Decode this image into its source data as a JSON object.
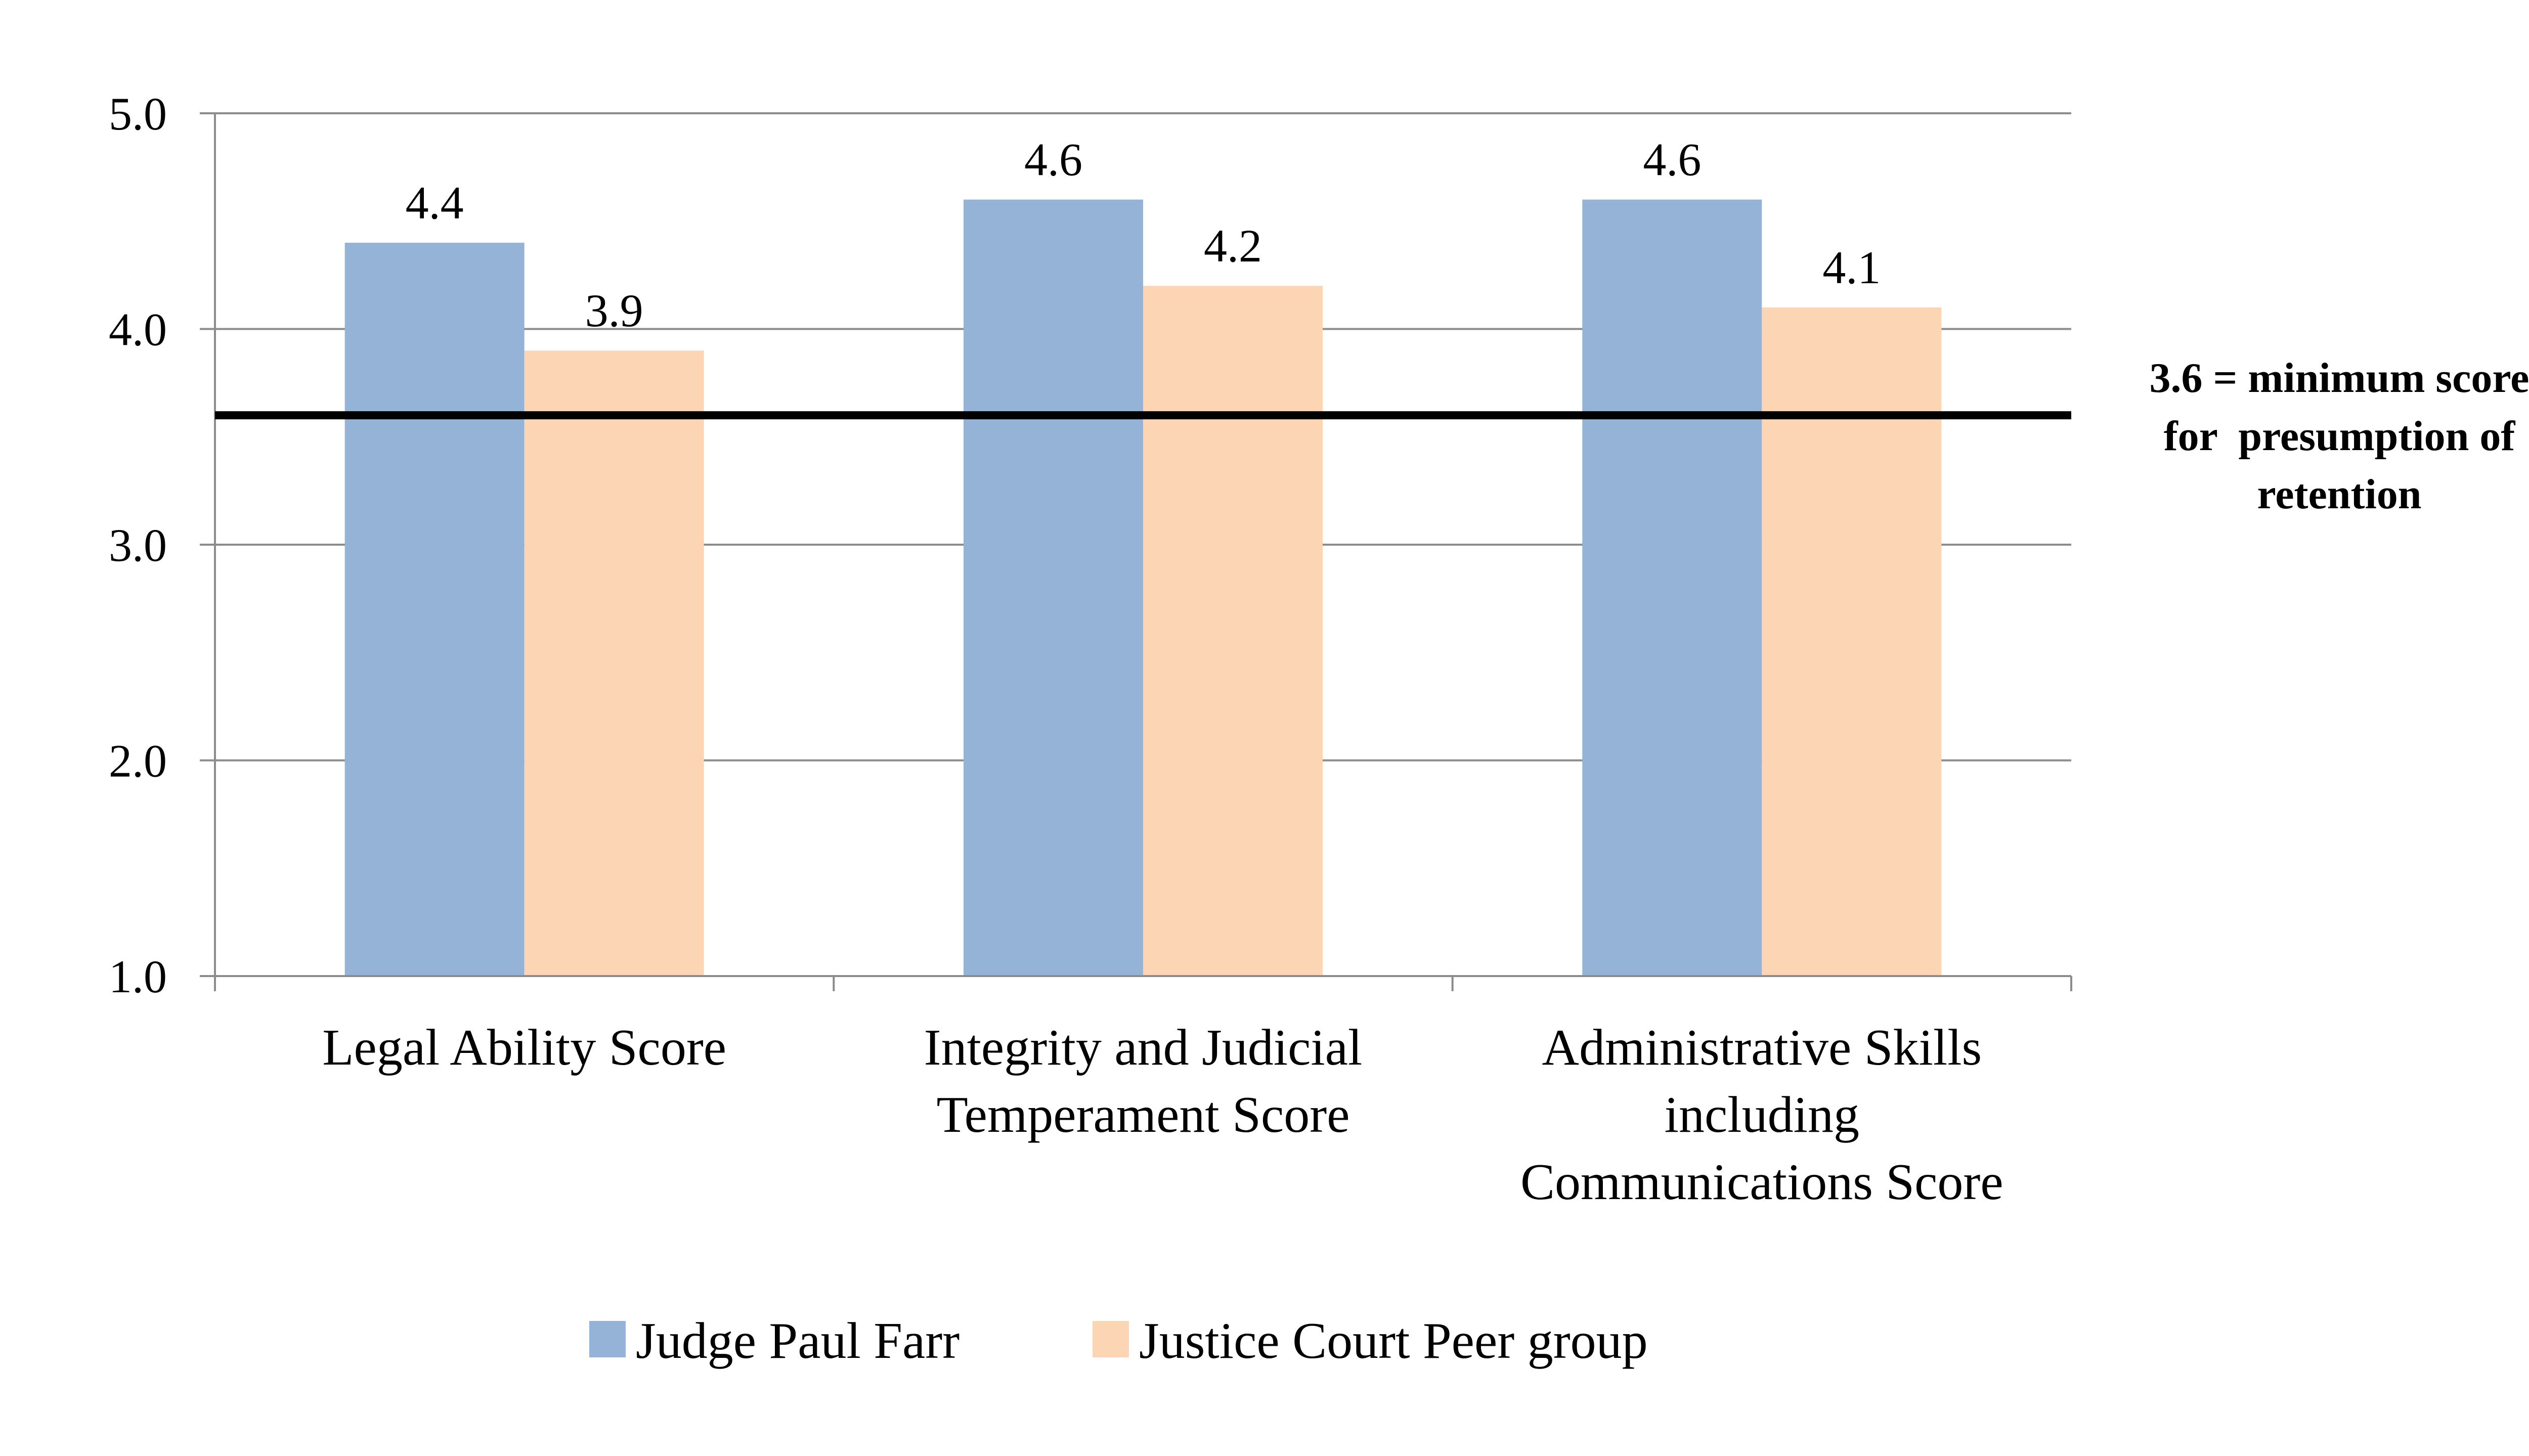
{
  "chart_data": {
    "type": "bar",
    "title": "",
    "xlabel": "",
    "ylabel": "",
    "categories": [
      [
        "Legal Ability Score"
      ],
      [
        "Integrity and Judicial",
        "Temperament Score"
      ],
      [
        "Administrative Skills",
        "including",
        "Communications Score"
      ]
    ],
    "series": [
      {
        "name": "Judge Paul Farr",
        "color": "#95B3D7",
        "values": [
          4.4,
          4.6,
          4.6
        ],
        "labels": [
          "4.4",
          "4.6",
          "4.6"
        ]
      },
      {
        "name": "Justice Court Peer group",
        "color": "#FCD5B5",
        "values": [
          3.9,
          4.2,
          4.1
        ],
        "labels": [
          "3.9",
          "4.2",
          "4.1"
        ]
      }
    ],
    "ylim": [
      1.0,
      5.0
    ],
    "yticks": [
      1.0,
      2.0,
      3.0,
      4.0,
      5.0
    ],
    "ytick_labels": [
      "1.0",
      "2.0",
      "3.0",
      "4.0",
      "5.0"
    ],
    "grid": true,
    "legend_position": "bottom",
    "reference_line": {
      "value": 3.6,
      "color": "#000000",
      "label_lines": [
        "3.6 = minimum score",
        "for  presumption of",
        "retention"
      ]
    }
  }
}
